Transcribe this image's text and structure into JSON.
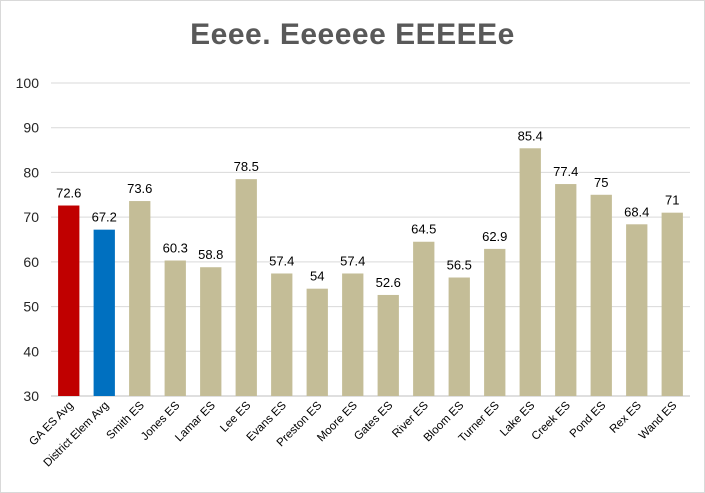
{
  "chart_data": {
    "type": "bar",
    "title": "Eeee. Eeeeee EEEEEe",
    "xlabel": "",
    "ylabel": "",
    "ylim": [
      30,
      100
    ],
    "yticks": [
      30,
      40,
      50,
      60,
      70,
      80,
      90,
      100
    ],
    "grid": true,
    "legend": "none",
    "categories": [
      "GA ES Avg",
      "District Elem Avg",
      "Smith ES",
      "Jones ES",
      "Lamar ES",
      "Lee ES",
      "Evans ES",
      "Preston ES",
      "Moore ES",
      "Gates ES",
      "River ES",
      "Bloom ES",
      "Turner ES",
      "Lake ES",
      "Creek ES",
      "Pond ES",
      "Rex ES",
      "Wand ES"
    ],
    "values": [
      72.6,
      67.2,
      73.6,
      60.3,
      58.8,
      78.5,
      57.4,
      54,
      57.4,
      52.6,
      64.5,
      56.5,
      62.9,
      85.4,
      77.4,
      75,
      68.4,
      71
    ],
    "data_labels": [
      "72.6",
      "67.2",
      "73.6",
      "60.3",
      "58.8",
      "78.5",
      "57.4",
      "54",
      "57.4",
      "52.6",
      "64.5",
      "56.5",
      "62.9",
      "85.4",
      "77.4",
      "75",
      "68.4",
      "71"
    ],
    "colors": [
      "#c00000",
      "#0070c0",
      "#c4bd97",
      "#c4bd97",
      "#c4bd97",
      "#c4bd97",
      "#c4bd97",
      "#c4bd97",
      "#c4bd97",
      "#c4bd97",
      "#c4bd97",
      "#c4bd97",
      "#c4bd97",
      "#c4bd97",
      "#c4bd97",
      "#c4bd97",
      "#c4bd97",
      "#c4bd97"
    ]
  }
}
